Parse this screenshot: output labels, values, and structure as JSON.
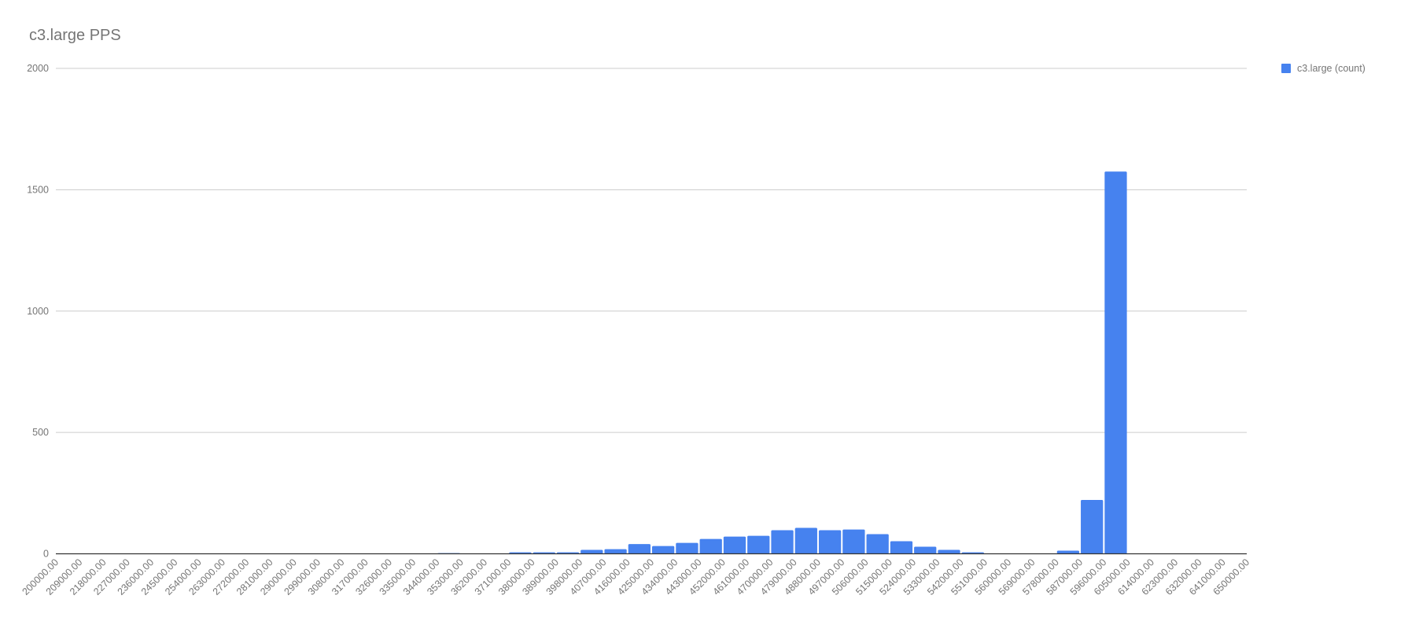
{
  "chart_data": {
    "type": "bar",
    "title": "c3.large PPS",
    "xlabel": "",
    "ylabel": "",
    "ylim": [
      0,
      2000
    ],
    "yticks": [
      "0",
      "500",
      "1000",
      "1500",
      "2000"
    ],
    "grid": true,
    "legend_position": "right",
    "bar_color": "#4682ef",
    "bin_edges": [
      "200000.00",
      "209000.00",
      "218000.00",
      "227000.00",
      "236000.00",
      "245000.00",
      "254000.00",
      "263000.00",
      "272000.00",
      "281000.00",
      "290000.00",
      "299000.00",
      "308000.00",
      "317000.00",
      "326000.00",
      "335000.00",
      "344000.00",
      "353000.00",
      "362000.00",
      "371000.00",
      "380000.00",
      "389000.00",
      "398000.00",
      "407000.00",
      "416000.00",
      "425000.00",
      "434000.00",
      "443000.00",
      "452000.00",
      "461000.00",
      "470000.00",
      "479000.00",
      "488000.00",
      "497000.00",
      "506000.00",
      "515000.00",
      "524000.00",
      "533000.00",
      "542000.00",
      "551000.00",
      "560000.00",
      "569000.00",
      "578000.00",
      "587000.00",
      "596000.00",
      "605000.00",
      "614000.00",
      "623000.00",
      "632000.00",
      "641000.00",
      "650000.00"
    ],
    "series": [
      {
        "name": "c3.large (count)",
        "values": [
          0,
          0,
          0,
          0,
          0,
          0,
          0,
          0,
          0,
          0,
          0,
          0,
          0,
          0,
          0,
          0,
          3,
          0,
          0,
          6,
          6,
          6,
          16,
          19,
          40,
          32,
          45,
          61,
          71,
          74,
          97,
          107,
          97,
          100,
          81,
          52,
          29,
          16,
          6,
          0,
          0,
          0,
          13,
          222,
          1575,
          0,
          0,
          0,
          0,
          0
        ]
      }
    ]
  }
}
